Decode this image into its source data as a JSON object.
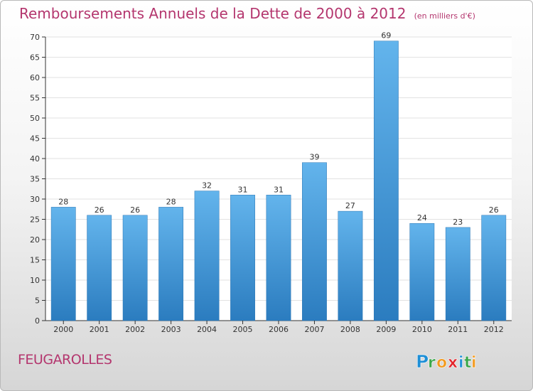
{
  "title": "Remboursements Annuels de la Dette de 2000 à 2012",
  "unit_label": "(en milliers d'€)",
  "commune": "FEUGAROLLES",
  "brand": {
    "text": "Proxiti",
    "letters": [
      {
        "char": "P",
        "color": "#1f8fd6"
      },
      {
        "char": "r",
        "color": "#3aa64a"
      },
      {
        "char": "o",
        "color": "#f29a1f"
      },
      {
        "char": "x",
        "color": "#e2252b"
      },
      {
        "char": "i",
        "color": "#1f8fd6"
      },
      {
        "char": "t",
        "color": "#3aa64a"
      },
      {
        "char": "i",
        "color": "#f29a1f"
      }
    ]
  },
  "colors": {
    "title": "#b4366e",
    "bar_top": "#63b4ec",
    "bar_bottom": "#2b7cbf",
    "axis": "#333333",
    "grid": "#e2e2e2",
    "text": "#333333"
  },
  "chart_data": {
    "type": "bar",
    "title": "Remboursements Annuels de la Dette de 2000 à 2012",
    "subtitle": "(en milliers d'€)",
    "categories": [
      "2000",
      "2001",
      "2002",
      "2003",
      "2004",
      "2005",
      "2006",
      "2007",
      "2008",
      "2009",
      "2010",
      "2011",
      "2012"
    ],
    "values": [
      28,
      26,
      26,
      28,
      32,
      31,
      31,
      39,
      27,
      69,
      24,
      23,
      26
    ],
    "ylim": [
      0,
      70
    ],
    "yticks": [
      0,
      5,
      10,
      15,
      20,
      25,
      30,
      35,
      40,
      45,
      50,
      55,
      60,
      65,
      70
    ],
    "xlabel": "",
    "ylabel": "",
    "grid": true,
    "legend": "none",
    "data_labels": true
  }
}
